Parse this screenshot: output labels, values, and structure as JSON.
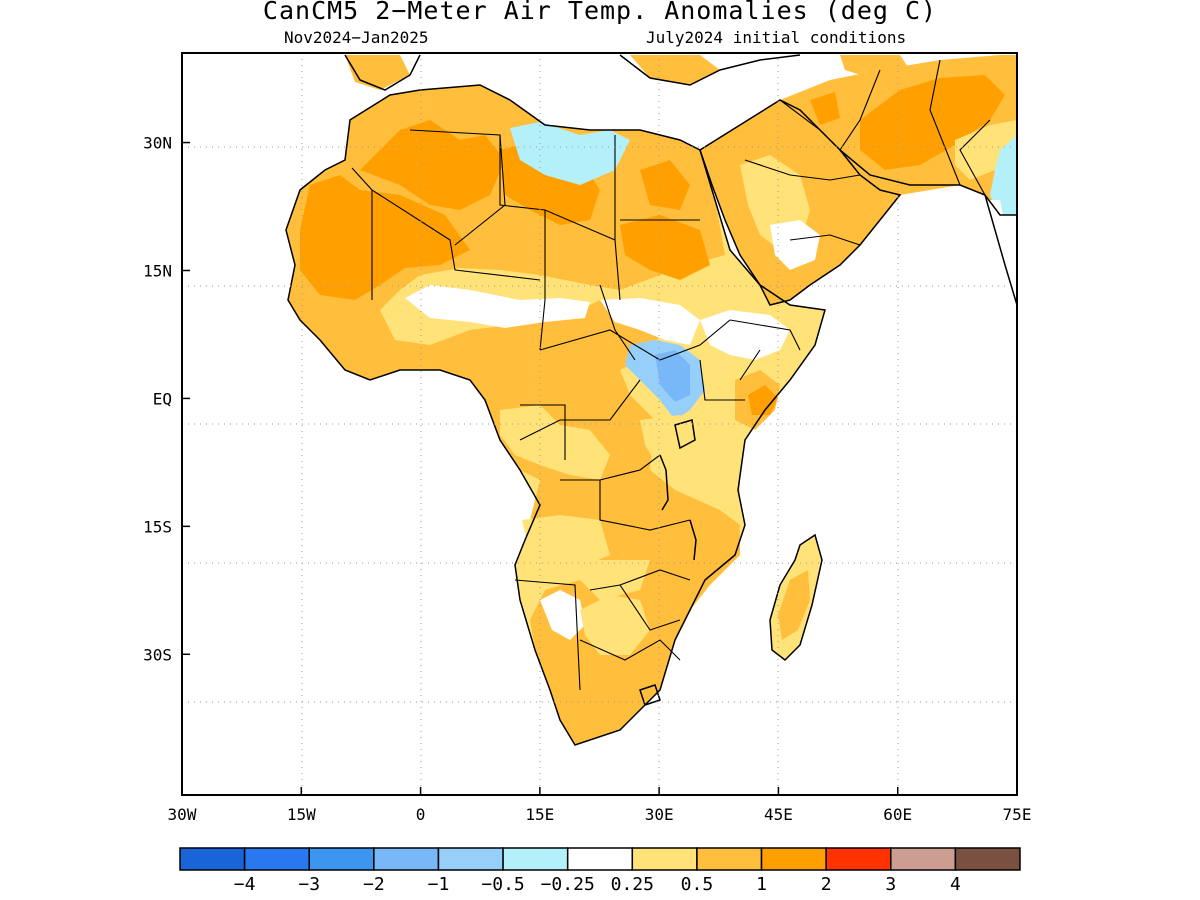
{
  "title": "CanCM5 2−Meter Air Temp. Anomalies (deg C)",
  "subtitle_left": "Nov2024−Jan2025",
  "subtitle_right": "July2024 initial conditions",
  "map": {
    "lon_range": [
      -30,
      75
    ],
    "lat_range": [
      -46.5,
      40.5
    ],
    "lon_ticks": [
      {
        "value": -30,
        "label": "30W"
      },
      {
        "value": -15,
        "label": "15W"
      },
      {
        "value": 0,
        "label": "0"
      },
      {
        "value": 15,
        "label": "15E"
      },
      {
        "value": 30,
        "label": "30E"
      },
      {
        "value": 45,
        "label": "45E"
      },
      {
        "value": 60,
        "label": "60E"
      },
      {
        "value": 75,
        "label": "75E"
      }
    ],
    "lat_ticks": [
      {
        "value": 30,
        "label": "30N"
      },
      {
        "value": 15,
        "label": "15N"
      },
      {
        "value": 0,
        "label": "EQ"
      },
      {
        "value": -15,
        "label": "15S"
      },
      {
        "value": -30,
        "label": "30S"
      }
    ],
    "grid": "dotted"
  },
  "colorbar": {
    "colors": [
      "#1864d8",
      "#2878f0",
      "#3c96f0",
      "#78b8f8",
      "#96d0fa",
      "#b4f0fa",
      "#ffffff",
      "#ffe278",
      "#ffbe3c",
      "#ffa000",
      "#ff3200",
      "#cc9e92",
      "#7a5040"
    ],
    "labels": [
      "−4",
      "−3",
      "−2",
      "−1",
      "−0.5",
      "−0.25",
      "0.25",
      "0.5",
      "1",
      "2",
      "3",
      "4"
    ]
  },
  "regions": [
    {
      "name": "sahara-north-africa",
      "category": "1"
    },
    {
      "name": "west-africa",
      "category": "1"
    },
    {
      "name": "arabia-iran",
      "category": "1"
    },
    {
      "name": "sahel-band",
      "category": "0.5"
    },
    {
      "name": "central-africa",
      "category": "0.5"
    },
    {
      "name": "southern-africa",
      "category": "1"
    },
    {
      "name": "madagascar",
      "category": "0.5"
    },
    {
      "name": "south-sudan-uganda",
      "category": "-1"
    },
    {
      "name": "libya-egypt-coast",
      "category": "-0.25"
    },
    {
      "name": "india-west-coast",
      "category": "-0.5"
    }
  ]
}
